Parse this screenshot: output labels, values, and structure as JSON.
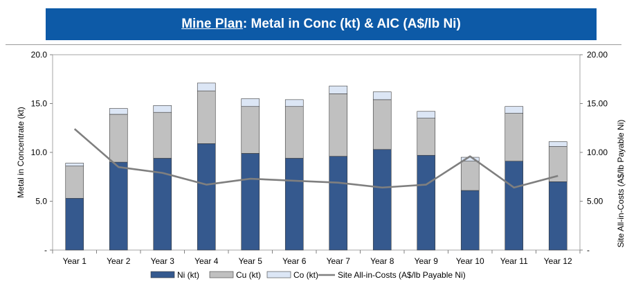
{
  "title": {
    "prefix": "Mine Plan",
    "rest": ": Metal in Conc (kt) & AIC (A$/lb Ni)"
  },
  "chart_data": {
    "type": "bar",
    "stacked": true,
    "categories": [
      "Year 1",
      "Year 2",
      "Year 3",
      "Year 4",
      "Year 5",
      "Year 6",
      "Year 7",
      "Year 8",
      "Year 9",
      "Year 10",
      "Year 11",
      "Year 12"
    ],
    "series": [
      {
        "name": "Ni (kt)",
        "color": "#35598e",
        "values": [
          5.3,
          9.0,
          9.4,
          10.9,
          9.9,
          9.4,
          9.6,
          10.3,
          9.7,
          6.1,
          9.1,
          7.0
        ]
      },
      {
        "name": "Cu (kt)",
        "color": "#c0c0c0",
        "values": [
          3.3,
          4.9,
          4.7,
          5.4,
          4.8,
          5.3,
          6.4,
          5.1,
          3.8,
          3.0,
          4.9,
          3.6
        ]
      },
      {
        "name": "Co (kt)",
        "color": "#dce6f5",
        "values": [
          0.3,
          0.6,
          0.7,
          0.8,
          0.8,
          0.7,
          0.8,
          0.8,
          0.7,
          0.4,
          0.7,
          0.5
        ]
      }
    ],
    "line_series": {
      "name": "Site All-in-Costs (A$/lb Payable Ni)",
      "color": "#7f7f7f",
      "axis": "right",
      "values": [
        12.4,
        8.5,
        7.9,
        6.7,
        7.3,
        7.1,
        6.9,
        6.4,
        6.7,
        9.6,
        6.4,
        7.6
      ]
    },
    "ylabel": "Metal in Concentrate (kt)",
    "y2label": "Site All-in-Costs  (A$/lb Payable Ni)",
    "ylim": [
      0,
      20
    ],
    "y2lim": [
      0,
      20
    ],
    "yticks": [
      "-",
      "5.0",
      "10.0",
      "15.0",
      "20.0"
    ],
    "y2ticks": [
      "-",
      "5.00",
      "10.00",
      "15.00",
      "20.00"
    ],
    "grid": false,
    "legend_position": "bottom"
  }
}
